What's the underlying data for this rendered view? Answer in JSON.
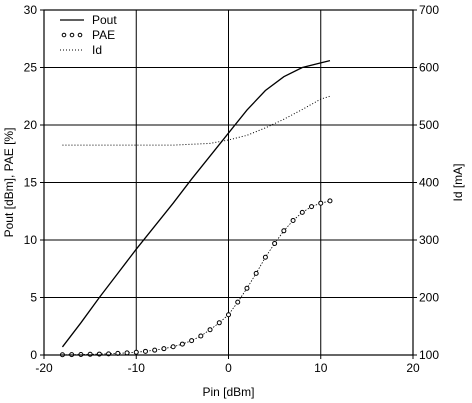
{
  "chart_data": {
    "type": "line",
    "title": "",
    "xlabel": "Pin [dBm]",
    "ylabel": "Pout [dBm], PAE [%]",
    "y2label": "Id [mA]",
    "xlim": [
      -20,
      20
    ],
    "ylim": [
      0,
      30
    ],
    "y2lim": [
      100,
      700
    ],
    "xticks": [
      -20,
      -10,
      0,
      10,
      20
    ],
    "xtick_labels": [
      "-20",
      "-10",
      "0",
      "10",
      "20"
    ],
    "yticks": [
      0,
      5,
      10,
      15,
      20,
      25,
      30
    ],
    "ytick_labels": [
      "0",
      "5",
      "10",
      "15",
      "20",
      "25",
      "30"
    ],
    "y2ticks": [
      100,
      200,
      300,
      400,
      500,
      600,
      700
    ],
    "y2tick_labels": [
      "100",
      "200",
      "300",
      "400",
      "500",
      "600",
      "700"
    ],
    "grid": true,
    "legend_position": "top-left",
    "series": [
      {
        "name": "Pout",
        "axis": "left",
        "style": "solid",
        "color": "#000000",
        "x": [
          -18,
          -16,
          -14,
          -12,
          -10,
          -8,
          -6,
          -4,
          -2,
          0,
          2,
          4,
          6,
          8,
          10,
          11
        ],
        "y": [
          0.7,
          2.8,
          5.0,
          7.1,
          9.2,
          11.2,
          13.2,
          15.3,
          17.3,
          19.3,
          21.3,
          23.0,
          24.2,
          25.0,
          25.4,
          25.6
        ]
      },
      {
        "name": "PAE",
        "axis": "left",
        "style": "circles",
        "color": "#000000",
        "x": [
          -18,
          -17,
          -16,
          -15,
          -14,
          -13,
          -12,
          -11,
          -10,
          -9,
          -8,
          -7,
          -6,
          -5,
          -4,
          -3,
          -2,
          -1,
          0,
          1,
          2,
          3,
          4,
          5,
          6,
          7,
          8,
          9,
          10,
          11
        ],
        "y": [
          0.02,
          0.03,
          0.04,
          0.06,
          0.08,
          0.1,
          0.14,
          0.18,
          0.24,
          0.32,
          0.42,
          0.55,
          0.72,
          0.95,
          1.25,
          1.65,
          2.2,
          2.8,
          3.5,
          4.6,
          5.8,
          7.1,
          8.5,
          9.7,
          10.8,
          11.7,
          12.4,
          12.9,
          13.2,
          13.4
        ]
      },
      {
        "name": "Id",
        "axis": "right",
        "style": "dotted",
        "color": "#000000",
        "x": [
          -18,
          -14,
          -10,
          -6,
          -2,
          0,
          2,
          4,
          6,
          8,
          10,
          11
        ],
        "y": [
          465,
          465,
          465,
          465,
          468,
          474,
          482,
          495,
          510,
          527,
          545,
          550
        ]
      }
    ]
  }
}
